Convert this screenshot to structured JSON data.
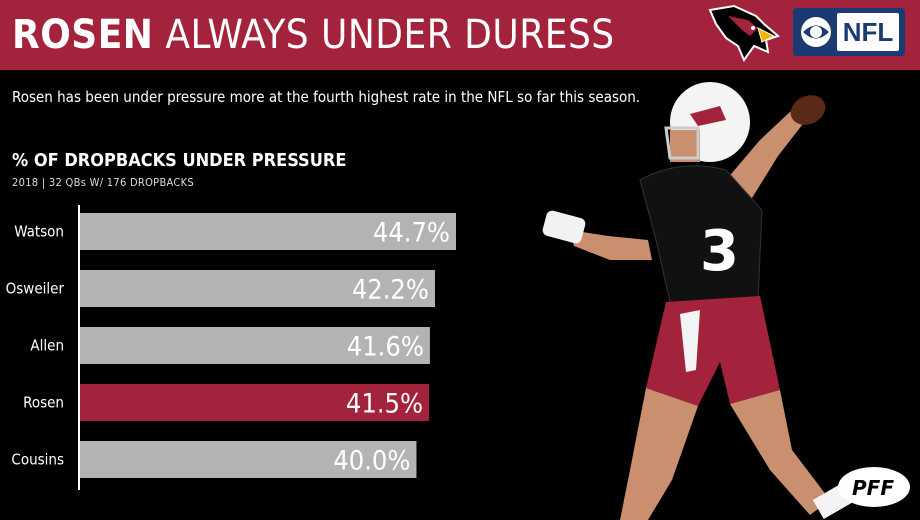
{
  "header": {
    "title_bold": "ROSEN",
    "title_rest": "ALWAYS UNDER DURESS",
    "network_label": "NFL"
  },
  "subtitle": "Rosen has been under pressure more at the fourth highest rate in the NFL so far this season.",
  "chart_data": {
    "type": "bar",
    "orientation": "horizontal",
    "title": "% OF DROPBACKS UNDER PRESSURE",
    "subtitle": "2018 | 32 QBs W/ 176 DROPBACKS",
    "categories": [
      "Watson",
      "Osweiler",
      "Allen",
      "Rosen",
      "Cousins"
    ],
    "values": [
      44.7,
      42.2,
      41.6,
      41.5,
      40.0
    ],
    "value_labels": [
      "44.7%",
      "42.2%",
      "41.6%",
      "41.5%",
      "40.0%"
    ],
    "highlight": "Rosen",
    "colors": {
      "default": "#b3b3b3",
      "highlight": "#a3233c"
    },
    "grid": false,
    "legend": "none"
  },
  "icons": {
    "team_logo": "cardinal-logo-icon",
    "network_logo": "cbs-eye-icon",
    "player_photo": "quarterback-photo",
    "watermark": "pff-logo-icon"
  }
}
